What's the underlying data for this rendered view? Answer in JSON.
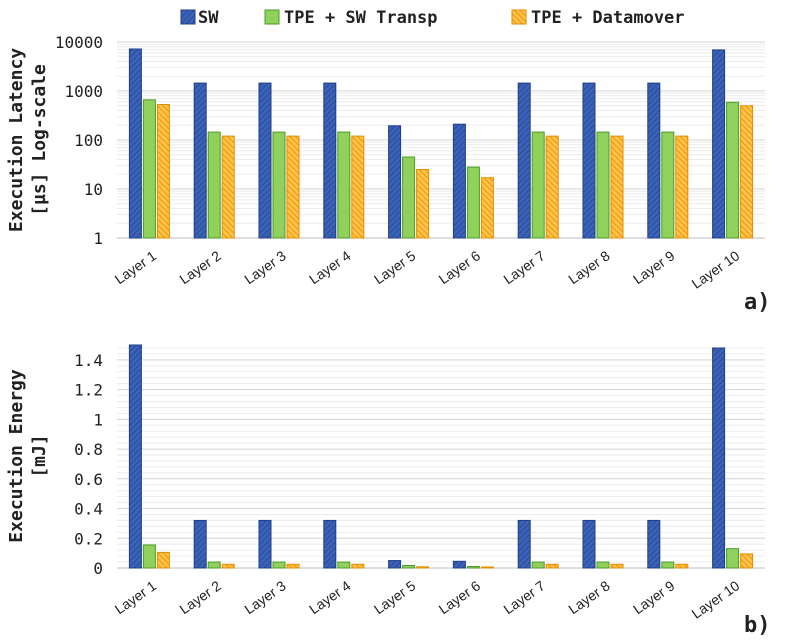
{
  "legend": {
    "entries": [
      {
        "name": "SW",
        "color": "#3a62b8",
        "stroke": "#1f3f86",
        "pattern": "hatch-blue"
      },
      {
        "name": "TPE + SW Transp",
        "color": "#8fd15a",
        "stroke": "#4e9a2a",
        "pattern": "solid-green"
      },
      {
        "name": "TPE + Datamover",
        "color": "#f5a21c",
        "stroke": "#e38d00",
        "pattern": "hatch-orange"
      }
    ]
  },
  "chart_data": [
    {
      "type": "bar",
      "panel_label": "a)",
      "title": "",
      "xlabel": "",
      "ylabel_line1": "Execution Latency",
      "ylabel_line2": "[µs] Log-scale",
      "yscale": "log",
      "ylim": [
        1,
        10000
      ],
      "yticks": [
        1,
        10,
        100,
        1000,
        10000
      ],
      "ytick_labels": [
        "1",
        "10",
        "100",
        "1000",
        "10000"
      ],
      "categories": [
        "Layer 1",
        "Layer 2",
        "Layer 3",
        "Layer 4",
        "Layer 5",
        "Layer 6",
        "Layer 7",
        "Layer 8",
        "Layer 9",
        "Layer 10"
      ],
      "series": [
        {
          "name": "SW",
          "values": [
            7200,
            1450,
            1450,
            1450,
            195,
            210,
            1450,
            1450,
            1450,
            6900
          ]
        },
        {
          "name": "TPE + SW Transp",
          "values": [
            660,
            145,
            145,
            145,
            45,
            28,
            145,
            145,
            145,
            590
          ]
        },
        {
          "name": "TPE + Datamover",
          "values": [
            530,
            120,
            120,
            120,
            25,
            17,
            120,
            120,
            120,
            500
          ]
        }
      ]
    },
    {
      "type": "bar",
      "panel_label": "b)",
      "title": "",
      "xlabel": "",
      "ylabel_line1": "Execution Energy",
      "ylabel_line2": "[mJ]",
      "yscale": "linear",
      "ylim": [
        0,
        1.5
      ],
      "yticks": [
        0,
        0.2,
        0.4,
        0.6,
        0.8,
        1,
        1.2,
        1.4
      ],
      "ytick_labels": [
        "0",
        "0.2",
        "0.4",
        "0.6",
        "0.8",
        "1",
        "1.2",
        "1.4"
      ],
      "categories": [
        "Layer 1",
        "Layer 2",
        "Layer 3",
        "Layer 4",
        "Layer 5",
        "Layer 6",
        "Layer 7",
        "Layer 8",
        "Layer 9",
        "Layer 10"
      ],
      "series": [
        {
          "name": "SW",
          "values": [
            1.5,
            0.32,
            0.32,
            0.32,
            0.05,
            0.045,
            0.32,
            0.32,
            0.32,
            1.48
          ]
        },
        {
          "name": "TPE + SW Transp",
          "values": [
            0.155,
            0.04,
            0.04,
            0.04,
            0.017,
            0.01,
            0.04,
            0.04,
            0.04,
            0.13
          ]
        },
        {
          "name": "TPE + Datamover",
          "values": [
            0.105,
            0.025,
            0.025,
            0.025,
            0.008,
            0.007,
            0.025,
            0.025,
            0.025,
            0.095
          ]
        }
      ]
    }
  ]
}
